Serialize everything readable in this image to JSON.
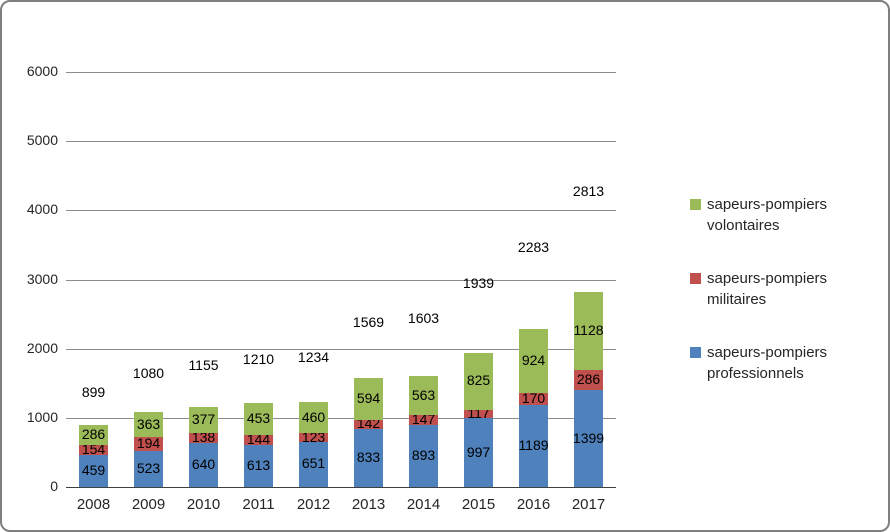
{
  "chart_data": {
    "type": "bar",
    "subtype": "stacked-column",
    "title": "",
    "categories": [
      "2008",
      "2009",
      "2010",
      "2011",
      "2012",
      "2013",
      "2014",
      "2015",
      "2016",
      "2017"
    ],
    "series": [
      {
        "name": "sapeurs-pompiers professionnels",
        "color": "#4F81BD",
        "values": [
          459,
          523,
          640,
          613,
          651,
          833,
          893,
          997,
          1189,
          1399
        ]
      },
      {
        "name": "sapeurs-pompiers militaires",
        "color": "#C0504D",
        "values": [
          154,
          194,
          138,
          144,
          123,
          142,
          147,
          117,
          170,
          286
        ]
      },
      {
        "name": "sapeurs-pompiers volontaires",
        "color": "#9BBB59",
        "values": [
          286,
          363,
          377,
          453,
          460,
          594,
          563,
          825,
          924,
          1128
        ]
      }
    ],
    "totals": [
      899,
      1080,
      1155,
      1210,
      1234,
      1569,
      1603,
      1939,
      2283,
      2813
    ],
    "y_axis": {
      "min": 0,
      "max": 6000,
      "step": 1000,
      "ticks": [
        "0",
        "1000",
        "2000",
        "3000",
        "4000",
        "5000",
        "6000"
      ]
    },
    "grid": true,
    "legend": {
      "position": "right",
      "items": [
        {
          "lines": [
            "sapeurs-pompiers",
            "volontaires"
          ],
          "color": "#9BBB59"
        },
        {
          "lines": [
            "sapeurs-pompiers",
            "militaires"
          ],
          "color": "#C0504D"
        },
        {
          "lines": [
            "sapeurs-pompiers",
            "professionnels"
          ],
          "color": "#4F81BD"
        }
      ]
    }
  }
}
